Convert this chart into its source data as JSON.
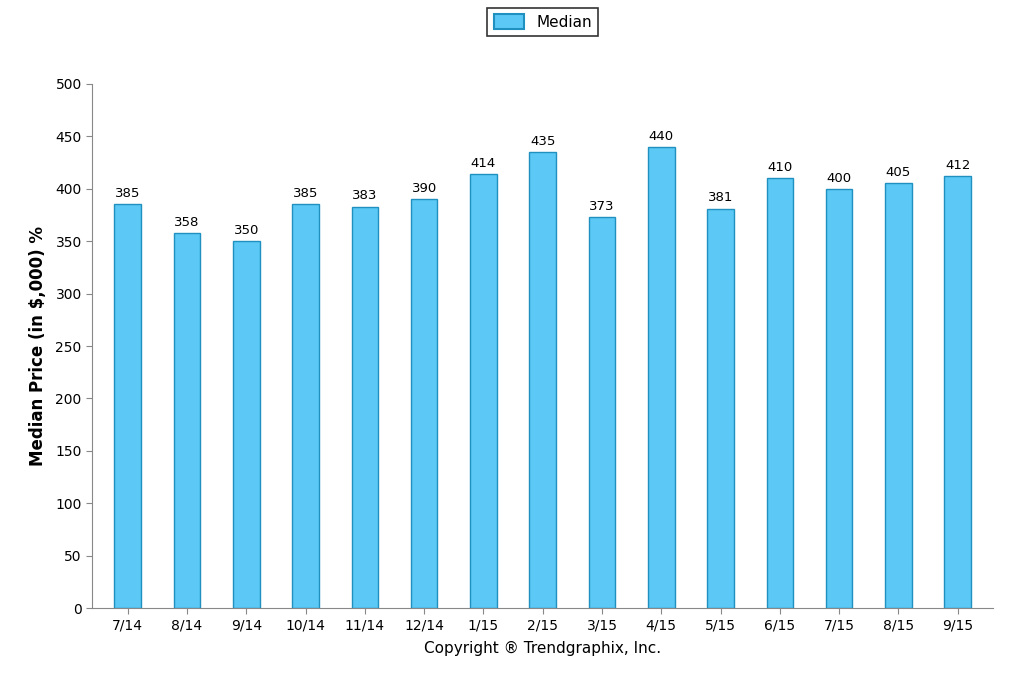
{
  "categories": [
    "7/14",
    "8/14",
    "9/14",
    "10/14",
    "11/14",
    "12/14",
    "1/15",
    "2/15",
    "3/15",
    "4/15",
    "5/15",
    "6/15",
    "7/15",
    "8/15",
    "9/15"
  ],
  "values": [
    385,
    358,
    350,
    385,
    383,
    390,
    414,
    435,
    373,
    440,
    381,
    410,
    400,
    405,
    412
  ],
  "bar_color": "#5BC8F5",
  "bar_edge_color": "#2090C0",
  "ylim": [
    0,
    500
  ],
  "yticks": [
    0,
    50,
    100,
    150,
    200,
    250,
    300,
    350,
    400,
    450,
    500
  ],
  "ylabel": "Median Price (in $,000) %",
  "xlabel": "Copyright ® Trendgraphix, Inc.",
  "legend_label": "Median",
  "background_color": "#ffffff",
  "axis_label_fontsize": 12,
  "tick_fontsize": 10,
  "bar_label_fontsize": 9.5,
  "bar_width": 0.45,
  "legend_fontsize": 11
}
